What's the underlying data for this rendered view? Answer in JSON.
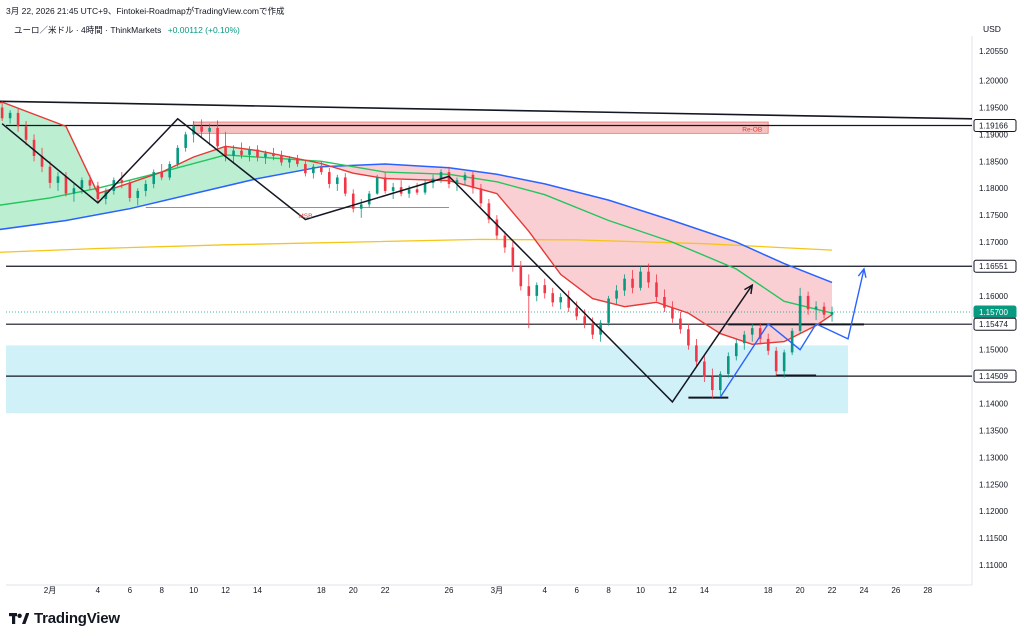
{
  "header": {
    "publish_line": "3月 22, 2026 21:45 UTC+9、Fintokei-RoadmapがTradingView.comで作成",
    "symbol": "ユーロ／米ドル · 4時間 · ThinkMarkets",
    "change": "+0.00112 (+0.10%)"
  },
  "chart_data": {
    "type": "candlestick",
    "unit_label": "USD",
    "ylim": [
      1.1055,
      1.2095
    ],
    "y_ticks": [
      "1.20550",
      "1.20000",
      "1.19500",
      "1.19000",
      "1.18500",
      "1.18000",
      "1.17500",
      "1.17000",
      "1.16500",
      "1.16000",
      "1.15500",
      "1.15000",
      "1.14500",
      "1.14000",
      "1.13500",
      "1.13000",
      "1.12500",
      "1.12000",
      "1.11500",
      "1.11000"
    ],
    "x_ticks": [
      "2月",
      "4",
      "6",
      "8",
      "10",
      "12",
      "14",
      "18",
      "20",
      "22",
      "26",
      "3月",
      "4",
      "6",
      "8",
      "10",
      "12",
      "14",
      "18",
      "20",
      "22",
      "24",
      "26",
      "28"
    ],
    "x_tick_dates": [
      "2026-02-01",
      "2026-02-04",
      "2026-02-06",
      "2026-02-08",
      "2026-02-10",
      "2026-02-12",
      "2026-02-14",
      "2026-02-18",
      "2026-02-20",
      "2026-02-22",
      "2026-02-26",
      "2026-03-01",
      "2026-03-04",
      "2026-03-06",
      "2026-03-08",
      "2026-03-10",
      "2026-03-12",
      "2026-03-14",
      "2026-03-18",
      "2026-03-20",
      "2026-03-22",
      "2026-03-24",
      "2026-03-26",
      "2026-03-28"
    ],
    "price_labels": [
      {
        "value": "1.19166",
        "style": "black"
      },
      {
        "value": "1.16551",
        "style": "black"
      },
      {
        "value": "1.15700",
        "style": "green"
      },
      {
        "value": "1.15474",
        "style": "black"
      },
      {
        "value": "1.14509",
        "style": "black"
      }
    ],
    "horizontal_levels": [
      1.19166,
      1.16551,
      1.15474,
      1.14509
    ],
    "last_price": 1.157,
    "annotations": [
      {
        "text": "MSB",
        "x": "2026-02-17",
        "y": 1.175
      },
      {
        "text": "Re-OB",
        "x": "2026-03-17",
        "y": 1.1911
      }
    ],
    "zones": [
      {
        "name": "supply",
        "x": [
          "2026-02-10",
          "2026-03-18"
        ],
        "y": [
          1.1902,
          1.1923
        ],
        "color": "#f5b6b6"
      },
      {
        "name": "demand",
        "x": [
          "2026-01-28",
          "2026-03-23"
        ],
        "y": [
          1.1382,
          1.1508
        ],
        "color": "#c9eef7"
      }
    ],
    "trendline": {
      "from": [
        "2026-01-28",
        1.1962
      ],
      "to": [
        "2026-03-31",
        1.1929
      ]
    },
    "zigzag": [
      [
        "2026-01-29",
        1.192
      ],
      [
        "2026-02-04",
        1.1773
      ],
      [
        "2026-02-09",
        1.1929
      ],
      [
        "2026-02-17",
        1.1742
      ],
      [
        "2026-02-26",
        1.1822
      ],
      [
        "2026-03-12",
        1.1403
      ],
      [
        "2026-03-17",
        1.162
      ]
    ],
    "projection": [
      [
        "2026-03-15",
        1.1412
      ],
      [
        "2026-03-18",
        1.1548
      ],
      [
        "2026-03-20",
        1.15
      ],
      [
        "2026-03-21",
        1.1548
      ],
      [
        "2026-03-23",
        1.152
      ],
      [
        "2026-03-24",
        1.165
      ]
    ],
    "ema_fast": [
      [
        "2026-01-28",
        1.195
      ],
      [
        "2026-01-29",
        1.196
      ],
      [
        "2026-02-02",
        1.1915
      ],
      [
        "2026-02-04",
        1.179
      ],
      [
        "2026-02-06",
        1.181
      ],
      [
        "2026-02-08",
        1.183
      ],
      [
        "2026-02-10",
        1.1858
      ],
      [
        "2026-02-12",
        1.1878
      ],
      [
        "2026-02-14",
        1.187
      ],
      [
        "2026-02-18",
        1.1846
      ],
      [
        "2026-02-20",
        1.1828
      ],
      [
        "2026-02-22",
        1.1818
      ],
      [
        "2026-02-26",
        1.1814
      ],
      [
        "2026-03-01",
        1.179
      ],
      [
        "2026-03-03",
        1.172
      ],
      [
        "2026-03-05",
        1.164
      ],
      [
        "2026-03-07",
        1.1595
      ],
      [
        "2026-03-09",
        1.158
      ],
      [
        "2026-03-11",
        1.1588
      ],
      [
        "2026-03-13",
        1.1568
      ],
      [
        "2026-03-15",
        1.153
      ],
      [
        "2026-03-17",
        1.151
      ],
      [
        "2026-03-19",
        1.1515
      ],
      [
        "2026-03-21",
        1.1545
      ],
      [
        "2026-03-22",
        1.1565
      ]
    ],
    "ema_mid": [
      [
        "2026-01-28",
        1.1765
      ],
      [
        "2026-02-01",
        1.1782
      ],
      [
        "2026-02-04",
        1.18
      ],
      [
        "2026-02-08",
        1.183
      ],
      [
        "2026-02-12",
        1.1862
      ],
      [
        "2026-02-18",
        1.185
      ],
      [
        "2026-02-22",
        1.183
      ],
      [
        "2026-02-26",
        1.1826
      ],
      [
        "2026-03-01",
        1.1812
      ],
      [
        "2026-03-04",
        1.1788
      ],
      [
        "2026-03-08",
        1.174
      ],
      [
        "2026-03-12",
        1.17
      ],
      [
        "2026-03-16",
        1.165
      ],
      [
        "2026-03-19",
        1.159
      ],
      [
        "2026-03-22",
        1.1568
      ]
    ],
    "ema_slow": [
      [
        "2026-01-28",
        1.172
      ],
      [
        "2026-02-02",
        1.174
      ],
      [
        "2026-02-06",
        1.1762
      ],
      [
        "2026-02-10",
        1.179
      ],
      [
        "2026-02-14",
        1.1818
      ],
      [
        "2026-02-18",
        1.184
      ],
      [
        "2026-02-22",
        1.1845
      ],
      [
        "2026-02-26",
        1.1838
      ],
      [
        "2026-03-01",
        1.1826
      ],
      [
        "2026-03-04",
        1.1808
      ],
      [
        "2026-03-08",
        1.1778
      ],
      [
        "2026-03-12",
        1.174
      ],
      [
        "2026-03-16",
        1.17
      ],
      [
        "2026-03-19",
        1.166
      ],
      [
        "2026-03-22",
        1.1625
      ]
    ],
    "ma_long": [
      [
        "2026-01-28",
        1.168
      ],
      [
        "2026-02-04",
        1.1688
      ],
      [
        "2026-02-12",
        1.1695
      ],
      [
        "2026-02-20",
        1.17
      ],
      [
        "2026-02-28",
        1.1705
      ],
      [
        "2026-03-06",
        1.1704
      ],
      [
        "2026-03-14",
        1.1697
      ],
      [
        "2026-03-22",
        1.1685
      ]
    ],
    "candles": [
      [
        "2026-01-28",
        1.1955,
        1.1985,
        1.1948,
        1.1975
      ],
      [
        "2026-01-28T12",
        1.1975,
        1.1982,
        1.194,
        1.195
      ],
      [
        "2026-01-29",
        1.195,
        1.1962,
        1.1925,
        1.193
      ],
      [
        "2026-01-29T12",
        1.193,
        1.1945,
        1.192,
        1.194
      ],
      [
        "2026-01-30",
        1.194,
        1.1948,
        1.1905,
        1.1915
      ],
      [
        "2026-01-30T12",
        1.1915,
        1.1925,
        1.188,
        1.189
      ],
      [
        "2026-01-31",
        1.189,
        1.19,
        1.185,
        1.186
      ],
      [
        "2026-01-31T12",
        1.186,
        1.1875,
        1.183,
        1.184
      ],
      [
        "2026-02-01",
        1.184,
        1.185,
        1.18,
        1.181
      ],
      [
        "2026-02-01T12",
        1.181,
        1.183,
        1.1795,
        1.1822
      ],
      [
        "2026-02-02",
        1.1822,
        1.183,
        1.1785,
        1.179
      ],
      [
        "2026-02-02T12",
        1.179,
        1.1808,
        1.1775,
        1.18
      ],
      [
        "2026-02-03",
        1.18,
        1.182,
        1.179,
        1.1815
      ],
      [
        "2026-02-03T12",
        1.1815,
        1.1825,
        1.1798,
        1.1805
      ],
      [
        "2026-02-04",
        1.1805,
        1.1812,
        1.1772,
        1.178
      ],
      [
        "2026-02-04T12",
        1.178,
        1.18,
        1.177,
        1.1795
      ],
      [
        "2026-02-05",
        1.1795,
        1.182,
        1.1788,
        1.1815
      ],
      [
        "2026-02-05T12",
        1.1815,
        1.183,
        1.18,
        1.181
      ],
      [
        "2026-02-06",
        1.181,
        1.1815,
        1.1775,
        1.1782
      ],
      [
        "2026-02-06T12",
        1.1782,
        1.18,
        1.1768,
        1.1795
      ],
      [
        "2026-02-07",
        1.1795,
        1.1815,
        1.1785,
        1.1808
      ],
      [
        "2026-02-07T12",
        1.1808,
        1.1835,
        1.18,
        1.183
      ],
      [
        "2026-02-08",
        1.183,
        1.1845,
        1.1815,
        1.182
      ],
      [
        "2026-02-08T12",
        1.182,
        1.185,
        1.1815,
        1.1845
      ],
      [
        "2026-02-09",
        1.1845,
        1.188,
        1.184,
        1.1875
      ],
      [
        "2026-02-09T12",
        1.1875,
        1.1905,
        1.1868,
        1.19
      ],
      [
        "2026-02-10",
        1.19,
        1.1925,
        1.1885,
        1.1915
      ],
      [
        "2026-02-10T12",
        1.1915,
        1.1928,
        1.1895,
        1.1905
      ],
      [
        "2026-02-11",
        1.1905,
        1.192,
        1.188,
        1.1912
      ],
      [
        "2026-02-11T12",
        1.1912,
        1.1926,
        1.187,
        1.1878
      ],
      [
        "2026-02-12",
        1.1878,
        1.1905,
        1.185,
        1.186
      ],
      [
        "2026-02-12T12",
        1.186,
        1.188,
        1.1845,
        1.187
      ],
      [
        "2026-02-13",
        1.187,
        1.1885,
        1.1855,
        1.1862
      ],
      [
        "2026-02-13T12",
        1.1862,
        1.1878,
        1.185,
        1.1872
      ],
      [
        "2026-02-14",
        1.1872,
        1.188,
        1.185,
        1.1858
      ],
      [
        "2026-02-14T12",
        1.1858,
        1.187,
        1.1845,
        1.1865
      ],
      [
        "2026-02-15",
        1.1865,
        1.1875,
        1.1852,
        1.186
      ],
      [
        "2026-02-15T12",
        1.186,
        1.187,
        1.1842,
        1.1848
      ],
      [
        "2026-02-16",
        1.1848,
        1.186,
        1.1838,
        1.1855
      ],
      [
        "2026-02-16T12",
        1.1855,
        1.1862,
        1.184,
        1.1845
      ],
      [
        "2026-02-17",
        1.1845,
        1.1852,
        1.1822,
        1.1828
      ],
      [
        "2026-02-17T12",
        1.1828,
        1.1845,
        1.1818,
        1.184
      ],
      [
        "2026-02-18",
        1.184,
        1.185,
        1.1825,
        1.183
      ],
      [
        "2026-02-18T12",
        1.183,
        1.1838,
        1.18,
        1.1808
      ],
      [
        "2026-02-19",
        1.1808,
        1.1825,
        1.1795,
        1.182
      ],
      [
        "2026-02-19T12",
        1.182,
        1.1828,
        1.1785,
        1.179
      ],
      [
        "2026-02-20",
        1.179,
        1.1798,
        1.1755,
        1.1762
      ],
      [
        "2026-02-20T12",
        1.1762,
        1.178,
        1.1745,
        1.177
      ],
      [
        "2026-02-21",
        1.177,
        1.1795,
        1.1765,
        1.179
      ],
      [
        "2026-02-21T12",
        1.179,
        1.1825,
        1.1788,
        1.182
      ],
      [
        "2026-02-22",
        1.182,
        1.183,
        1.179,
        1.1795
      ],
      [
        "2026-02-22T12",
        1.1795,
        1.181,
        1.178,
        1.1802
      ],
      [
        "2026-02-23",
        1.1802,
        1.1815,
        1.1785,
        1.179
      ],
      [
        "2026-02-23T12",
        1.179,
        1.1805,
        1.1782,
        1.1798
      ],
      [
        "2026-02-24",
        1.1798,
        1.181,
        1.1788,
        1.1792
      ],
      [
        "2026-02-24T12",
        1.1792,
        1.1815,
        1.1788,
        1.181
      ],
      [
        "2026-02-25",
        1.181,
        1.1825,
        1.18,
        1.1818
      ],
      [
        "2026-02-25T12",
        1.1818,
        1.1835,
        1.181,
        1.183
      ],
      [
        "2026-02-26",
        1.183,
        1.184,
        1.18,
        1.1808
      ],
      [
        "2026-02-26T12",
        1.1808,
        1.182,
        1.1795,
        1.1815
      ],
      [
        "2026-02-27",
        1.1815,
        1.183,
        1.1805,
        1.1825
      ],
      [
        "2026-02-27T12",
        1.1825,
        1.1832,
        1.179,
        1.18
      ],
      [
        "2026-02-28",
        1.18,
        1.1808,
        1.1765,
        1.1772
      ],
      [
        "2026-02-28T12",
        1.1772,
        1.178,
        1.1735,
        1.1742
      ],
      [
        "2026-03-01",
        1.1742,
        1.175,
        1.1705,
        1.1712
      ],
      [
        "2026-03-01T12",
        1.1712,
        1.172,
        1.168,
        1.169
      ],
      [
        "2026-03-02",
        1.169,
        1.17,
        1.1645,
        1.1655
      ],
      [
        "2026-03-02T12",
        1.1655,
        1.1665,
        1.161,
        1.1618
      ],
      [
        "2026-03-03",
        1.1618,
        1.164,
        1.154,
        1.16
      ],
      [
        "2026-03-03T12",
        1.16,
        1.1625,
        1.159,
        1.162
      ],
      [
        "2026-03-04",
        1.162,
        1.1632,
        1.1595,
        1.1605
      ],
      [
        "2026-03-04T12",
        1.1605,
        1.1615,
        1.158,
        1.1588
      ],
      [
        "2026-03-05",
        1.1588,
        1.1605,
        1.1575,
        1.1598
      ],
      [
        "2026-03-05T12",
        1.1598,
        1.161,
        1.157,
        1.1578
      ],
      [
        "2026-03-06",
        1.1578,
        1.159,
        1.1555,
        1.1562
      ],
      [
        "2026-03-06T12",
        1.1562,
        1.1575,
        1.154,
        1.1548
      ],
      [
        "2026-03-07",
        1.1548,
        1.156,
        1.152,
        1.1528
      ],
      [
        "2026-03-07T12",
        1.1528,
        1.1555,
        1.1515,
        1.155
      ],
      [
        "2026-03-08",
        1.155,
        1.16,
        1.1545,
        1.1595
      ],
      [
        "2026-03-08T12",
        1.1595,
        1.162,
        1.1585,
        1.161
      ],
      [
        "2026-03-09",
        1.161,
        1.164,
        1.16,
        1.1632
      ],
      [
        "2026-03-09T12",
        1.1632,
        1.1648,
        1.1605,
        1.1615
      ],
      [
        "2026-03-10",
        1.1615,
        1.1655,
        1.161,
        1.1645
      ],
      [
        "2026-03-10T12",
        1.1645,
        1.166,
        1.1615,
        1.1625
      ],
      [
        "2026-03-11",
        1.1625,
        1.164,
        1.159,
        1.1598
      ],
      [
        "2026-03-11T12",
        1.1598,
        1.1612,
        1.157,
        1.1578
      ],
      [
        "2026-03-12",
        1.1578,
        1.159,
        1.155,
        1.1558
      ],
      [
        "2026-03-12T12",
        1.1558,
        1.157,
        1.153,
        1.1538
      ],
      [
        "2026-03-13",
        1.1538,
        1.1548,
        1.15,
        1.1508
      ],
      [
        "2026-03-13T12",
        1.1508,
        1.152,
        1.147,
        1.1478
      ],
      [
        "2026-03-14",
        1.1478,
        1.149,
        1.144,
        1.145
      ],
      [
        "2026-03-14T12",
        1.145,
        1.1465,
        1.141,
        1.1425
      ],
      [
        "2026-03-15",
        1.1425,
        1.146,
        1.1415,
        1.1455
      ],
      [
        "2026-03-15T12",
        1.1455,
        1.1495,
        1.1448,
        1.1488
      ],
      [
        "2026-03-16",
        1.1488,
        1.152,
        1.148,
        1.1512
      ],
      [
        "2026-03-16T12",
        1.1512,
        1.1535,
        1.15,
        1.1528
      ],
      [
        "2026-03-17",
        1.1528,
        1.1548,
        1.1515,
        1.154
      ],
      [
        "2026-03-17T12",
        1.154,
        1.155,
        1.151,
        1.152
      ],
      [
        "2026-03-18",
        1.152,
        1.153,
        1.149,
        1.1498
      ],
      [
        "2026-03-18T12",
        1.1498,
        1.1505,
        1.1452,
        1.146
      ],
      [
        "2026-03-19",
        1.146,
        1.15,
        1.1448,
        1.1495
      ],
      [
        "2026-03-19T12",
        1.1495,
        1.154,
        1.149,
        1.1535
      ],
      [
        "2026-03-20",
        1.1535,
        1.1615,
        1.153,
        1.16
      ],
      [
        "2026-03-20T12",
        1.16,
        1.1608,
        1.1565,
        1.1575
      ],
      [
        "2026-03-21",
        1.1575,
        1.159,
        1.1555,
        1.158
      ],
      [
        "2026-03-21T12",
        1.158,
        1.1588,
        1.1558,
        1.1565
      ],
      [
        "2026-03-22",
        1.1565,
        1.158,
        1.1552,
        1.157
      ]
    ]
  },
  "brand": {
    "name": "TradingView"
  }
}
